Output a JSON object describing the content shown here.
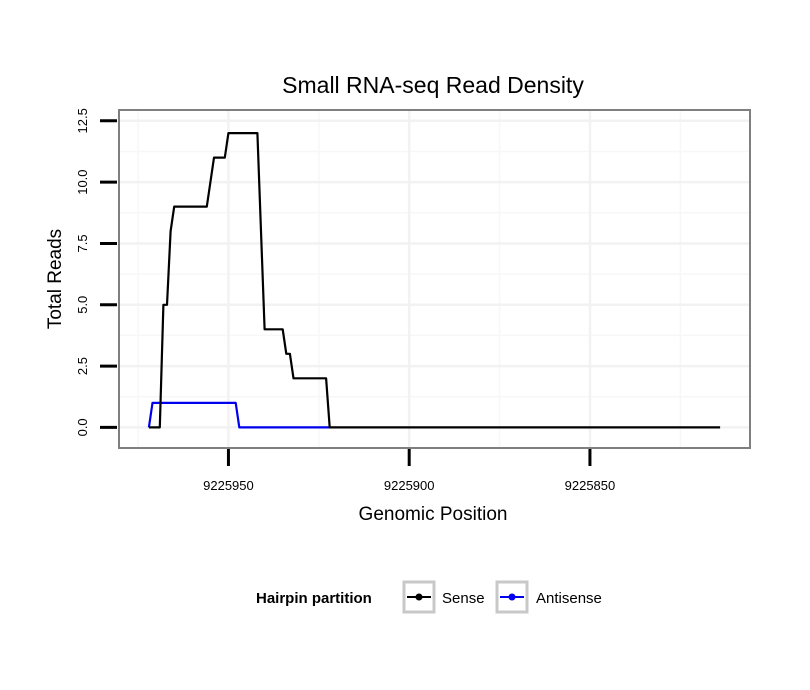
{
  "chart_data": {
    "type": "line",
    "title": "Small RNA-seq Read Density",
    "xlabel": "Genomic Position",
    "ylabel": "Total Reads",
    "x_reversed": true,
    "xlim": [
      9225980,
      9225806
    ],
    "ylim": [
      -0.8,
      12.9
    ],
    "x_ticks": [
      9225950,
      9225900,
      9225850
    ],
    "x_tick_labels": [
      "9225950",
      "9225900",
      "9225850"
    ],
    "y_ticks": [
      0,
      2.5,
      5,
      7.5,
      10,
      12.5
    ],
    "y_tick_labels": [
      "0.0",
      "2.5",
      "5.0",
      "7.5",
      "10.0",
      "12.5"
    ],
    "grid": true,
    "legend": {
      "title": "Hairpin partition",
      "placement": "bottom"
    },
    "series": [
      {
        "name": "Sense",
        "color": "#000000",
        "points": [
          [
            9225972,
            0
          ],
          [
            9225969,
            0
          ],
          [
            9225968,
            5
          ],
          [
            9225967,
            5
          ],
          [
            9225966,
            8
          ],
          [
            9225965,
            9
          ],
          [
            9225956,
            9
          ],
          [
            9225954,
            11
          ],
          [
            9225951,
            11
          ],
          [
            9225950,
            12
          ],
          [
            9225942,
            12
          ],
          [
            9225940,
            4
          ],
          [
            9225935,
            4
          ],
          [
            9225934,
            3
          ],
          [
            9225933,
            3
          ],
          [
            9225932,
            2
          ],
          [
            9225923,
            2
          ],
          [
            9225922,
            0
          ],
          [
            9225814,
            0
          ]
        ]
      },
      {
        "name": "Antisense",
        "color": "#0000ee",
        "points": [
          [
            9225972,
            0
          ],
          [
            9225971,
            1
          ],
          [
            9225948,
            1
          ],
          [
            9225947,
            0
          ],
          [
            9225922,
            0
          ]
        ]
      }
    ]
  }
}
